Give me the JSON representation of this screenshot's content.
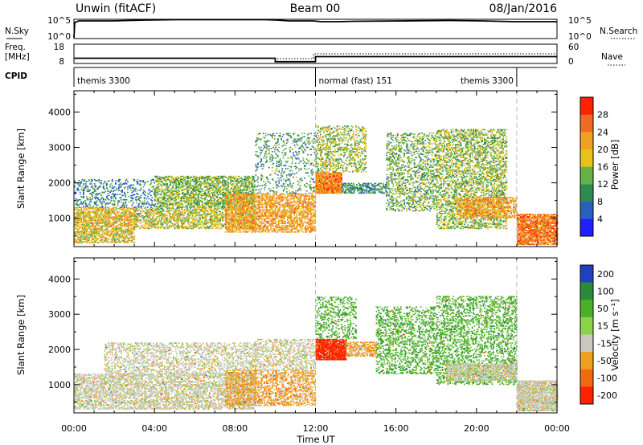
{
  "header": {
    "station": "Unwin (fitACF)",
    "beam": "Beam 00",
    "date": "08/Jan/2016"
  },
  "strips": {
    "nsky": {
      "label": "N.Sky",
      "tick_labels": [
        "10^5",
        "10^0"
      ],
      "right_label": "N.Search",
      "right_tick_labels": [
        "10^5",
        "10^0"
      ]
    },
    "freq": {
      "label_top": "Freq.",
      "label_unit": "[MHz]",
      "tick_labels": [
        "18",
        "8"
      ],
      "right_label": "Nave",
      "right_tick_labels": [
        "60",
        "0"
      ],
      "values_mhz": [
        {
          "t": 0.0,
          "v": 11.0
        },
        {
          "t": 10.0,
          "v": 11.0
        },
        {
          "t": 10.0,
          "v": 9.3
        },
        {
          "t": 12.0,
          "v": 9.3
        },
        {
          "t": 12.0,
          "v": 11.8
        },
        {
          "t": 24.0,
          "v": 11.8
        }
      ]
    },
    "cpid": {
      "label": "CPID",
      "segments": [
        {
          "start": 0,
          "end": 12,
          "name": "themis 3300"
        },
        {
          "start": 12,
          "end": 22,
          "name": "normal (fast) 151"
        },
        {
          "start": 22,
          "end": 24,
          "name": ""
        }
      ],
      "extra_label": {
        "name": "themis 3300"
      }
    }
  },
  "chart_data": [
    {
      "type": "heatmap",
      "panel": "power",
      "ylabel": "Slant Range [km]",
      "ylim": [
        200,
        4600
      ],
      "yticks": [
        1000,
        2000,
        3000,
        4000
      ],
      "xlim": [
        0,
        24
      ],
      "colorbar": {
        "label": "Power [dB]",
        "range": [
          0,
          32
        ],
        "tick_values": [
          4,
          8,
          12,
          16,
          20,
          24,
          28
        ],
        "tick_labels": [
          "4",
          "8",
          "12",
          "16",
          "20",
          "24",
          "28"
        ]
      },
      "regions": [
        {
          "t0": 0.0,
          "t1": 3.0,
          "r0": 300,
          "r1": 1300,
          "level": 19,
          "density": 0.6
        },
        {
          "t0": 0.0,
          "t1": 4.0,
          "r0": 1300,
          "r1": 2100,
          "level": 9,
          "density": 0.25
        },
        {
          "t0": 3.0,
          "t1": 9.0,
          "r0": 700,
          "r1": 1300,
          "level": 17,
          "density": 0.5
        },
        {
          "t0": 4.0,
          "t1": 9.0,
          "r0": 1300,
          "r1": 2200,
          "level": 14,
          "density": 0.55
        },
        {
          "t0": 7.5,
          "t1": 12.0,
          "r0": 600,
          "r1": 1700,
          "level": 22,
          "density": 0.55
        },
        {
          "t0": 9.0,
          "t1": 12.0,
          "r0": 1700,
          "r1": 3400,
          "level": 11,
          "density": 0.18
        },
        {
          "t0": 12.0,
          "t1": 13.3,
          "r0": 1700,
          "r1": 2300,
          "level": 24,
          "density": 0.9
        },
        {
          "t0": 12.0,
          "t1": 14.5,
          "r0": 2300,
          "r1": 3600,
          "level": 15,
          "density": 0.35
        },
        {
          "t0": 13.3,
          "t1": 15.5,
          "r0": 1700,
          "r1": 2000,
          "level": 10,
          "density": 0.55
        },
        {
          "t0": 15.5,
          "t1": 18.0,
          "r0": 1200,
          "r1": 3400,
          "level": 13,
          "density": 0.35
        },
        {
          "t0": 18.0,
          "t1": 21.5,
          "r0": 700,
          "r1": 3500,
          "level": 15,
          "density": 0.42
        },
        {
          "t0": 19.0,
          "t1": 22.0,
          "r0": 1000,
          "r1": 1600,
          "level": 22,
          "density": 0.55
        },
        {
          "t0": 22.0,
          "t1": 24.0,
          "r0": 250,
          "r1": 1100,
          "level": 25,
          "density": 0.8
        }
      ]
    },
    {
      "type": "heatmap",
      "panel": "velocity",
      "ylabel": "Slant Range [km]",
      "ylim": [
        200,
        4600
      ],
      "yticks": [
        1000,
        2000,
        3000,
        4000
      ],
      "xlim": [
        0,
        24
      ],
      "xlabel": "Time UT",
      "xticks": [
        0,
        4,
        8,
        12,
        16,
        20,
        24
      ],
      "xtick_labels": [
        "00:00",
        "04:00",
        "08:00",
        "12:00",
        "16:00",
        "20:00",
        "00:00"
      ],
      "colorbar": {
        "label": "Velocity [m s⁻¹]",
        "levels": [
          200,
          100,
          50,
          15,
          -15,
          -50,
          -100,
          -200
        ],
        "tick_labels": [
          "200",
          "100",
          "50",
          "15",
          "-15",
          "-50",
          "-100",
          "-200"
        ]
      },
      "regions": [
        {
          "t0": 0.0,
          "t1": 9.0,
          "r0": 300,
          "r1": 1300,
          "level": "gray",
          "density": 0.55
        },
        {
          "t0": 1.5,
          "t1": 9.0,
          "r0": 1300,
          "r1": 2200,
          "level": "gray",
          "density": 0.35
        },
        {
          "t0": 7.5,
          "t1": 12.0,
          "r0": 400,
          "r1": 1400,
          "level": "orange",
          "density": 0.45
        },
        {
          "t0": 9.0,
          "t1": 12.0,
          "r0": 1400,
          "r1": 2300,
          "level": "gray",
          "density": 0.4
        },
        {
          "t0": 12.0,
          "t1": 13.5,
          "r0": 1700,
          "r1": 2300,
          "level": "red",
          "density": 0.9
        },
        {
          "t0": 12.0,
          "t1": 14.0,
          "r0": 2300,
          "r1": 3500,
          "level": "green",
          "density": 0.3
        },
        {
          "t0": 13.5,
          "t1": 15.0,
          "r0": 1800,
          "r1": 2200,
          "level": "orange",
          "density": 0.55
        },
        {
          "t0": 15.0,
          "t1": 18.0,
          "r0": 1300,
          "r1": 3200,
          "level": "green",
          "density": 0.35
        },
        {
          "t0": 18.0,
          "t1": 22.0,
          "r0": 1000,
          "r1": 3500,
          "level": "green",
          "density": 0.35
        },
        {
          "t0": 18.5,
          "t1": 22.0,
          "r0": 1100,
          "r1": 1600,
          "level": "gray",
          "density": 0.6
        },
        {
          "t0": 22.0,
          "t1": 24.0,
          "r0": 250,
          "r1": 1100,
          "level": "gray",
          "density": 0.8
        }
      ]
    }
  ],
  "colors": {
    "power_scale": [
      "#1f1fff",
      "#2a5fbf",
      "#2f8a4f",
      "#66b24a",
      "#e6c21a",
      "#f0a022",
      "#f06a22",
      "#ff2200"
    ],
    "velocity_scale": [
      "#2040c0",
      "#2a8a3a",
      "#4caf2a",
      "#8cd24a",
      "#c8c8c0",
      "#f0a020",
      "#f06a10",
      "#ff2200"
    ],
    "velocity_level_index": {
      "blue": 0,
      "darkgreen": 1,
      "green": 2,
      "lightgreen": 3,
      "gray": 4,
      "orange": 5,
      "darkorange": 6,
      "red": 7
    },
    "divider": "#bbbbbb"
  }
}
